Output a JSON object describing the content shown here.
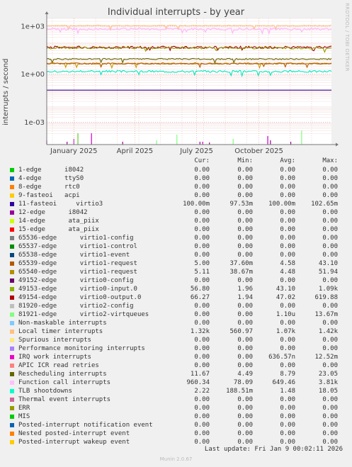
{
  "title": "Individual interrupts - by year",
  "side_credit": "RRDTOOL / TOBI OETIKER",
  "footer": {
    "last_update": "Last update: Fri Jan  9 00:02:11 2026",
    "version": "Munin 2.0.67"
  },
  "legend_header": {
    "cur": "Cur:",
    "min": "Min:",
    "avg": "Avg:",
    "max": "Max:"
  },
  "chart_data": {
    "type": "line",
    "title": "Individual interrupts - by year",
    "ylabel": "interrupts / second",
    "yscale": "log",
    "ylim": [
      4e-05,
      3000
    ],
    "yticks": [
      {
        "value": 0.001,
        "label": "1e-03"
      },
      {
        "value": 1,
        "label": "1e+00"
      },
      {
        "value": 1000,
        "label": "1e+03"
      }
    ],
    "xlim": [
      0,
      420
    ],
    "xticks": [
      {
        "label": "January 2025",
        "x": 40
      },
      {
        "label": "April 2025",
        "x": 130
      },
      {
        "label": "July 2025",
        "x": 221
      },
      {
        "label": "October 2025",
        "x": 313
      }
    ],
    "grid": true,
    "series": [
      {
        "name": "Local timer interrupts",
        "color": "#ffbf80",
        "level": 1070,
        "spread": 0.05
      },
      {
        "name": "Function call interrupts",
        "color": "#ffb3ff",
        "level": 650,
        "spread": 0.12
      },
      {
        "name": "49154-edge",
        "color": "#990000",
        "level": 47,
        "spread": 0.15
      },
      {
        "name": "49153-edge",
        "color": "#999900",
        "level": 43,
        "spread": 0.12
      },
      {
        "name": "Rescheduling interrupts",
        "color": "#666600",
        "level": 8.8,
        "spread": 0.08
      },
      {
        "name": "65540-edge",
        "color": "#cc9900",
        "level": 4.48,
        "spread": 0.08
      },
      {
        "name": "65539-edge",
        "color": "#b35900",
        "level": 4.58,
        "spread": 0.08
      },
      {
        "name": "TLB shootdowns",
        "color": "#00e6b8",
        "level": 1.48,
        "spread": 0.12
      },
      {
        "name": "11-fasteoi",
        "color": "#330099",
        "level": 0.1,
        "spread": 0.0
      }
    ],
    "spikes": [
      {
        "x": 0,
        "color": "#990099",
        "height": 0.6
      },
      {
        "x": 30,
        "color": "#990099",
        "height": 0.4
      },
      {
        "x": 40,
        "color": "#cc33cc",
        "height": 0.8
      },
      {
        "x": 46,
        "color": "#66cc33",
        "height": 1.6
      },
      {
        "x": 66,
        "color": "#cc00cc",
        "height": 1.6
      },
      {
        "x": 112,
        "color": "#990099",
        "height": 0.4
      },
      {
        "x": 162,
        "color": "#80ff80",
        "height": 0.6
      },
      {
        "x": 192,
        "color": "#80ff80",
        "height": 1.4
      },
      {
        "x": 226,
        "color": "#990099",
        "height": 0.4
      },
      {
        "x": 230,
        "color": "#cc00cc",
        "height": 0.4
      },
      {
        "x": 240,
        "color": "#990099",
        "height": 0.3
      },
      {
        "x": 275,
        "color": "#80ff80",
        "height": 0.8
      },
      {
        "x": 326,
        "color": "#cc00cc",
        "height": 1.2
      },
      {
        "x": 330,
        "color": "#990099",
        "height": 0.6
      },
      {
        "x": 360,
        "color": "#990099",
        "height": 0.4
      },
      {
        "x": 376,
        "color": "#80ff80",
        "height": 2.0
      }
    ]
  },
  "legend": [
    {
      "color": "#00cc00",
      "label": "1-edge      i8042",
      "cur": "0.00",
      "min": "0.00",
      "avg": "0.00",
      "max": "0.00"
    },
    {
      "color": "#0066b3",
      "label": "4-edge      ttyS0",
      "cur": "0.00",
      "min": "0.00",
      "avg": "0.00",
      "max": "0.00"
    },
    {
      "color": "#ff8000",
      "label": "8-edge      rtc0",
      "cur": "0.00",
      "min": "0.00",
      "avg": "0.00",
      "max": "0.00"
    },
    {
      "color": "#ffcc00",
      "label": "9-fasteoi   acpi",
      "cur": "0.00",
      "min": "0.00",
      "avg": "0.00",
      "max": "0.00"
    },
    {
      "color": "#330099",
      "label": "11-fasteoi     virtio3",
      "cur": "100.00m",
      "min": "97.53m",
      "avg": "100.00m",
      "max": "102.65m"
    },
    {
      "color": "#990099",
      "label": "12-edge      i8042",
      "cur": "0.00",
      "min": "0.00",
      "avg": "0.00",
      "max": "0.00"
    },
    {
      "color": "#ccff00",
      "label": "14-edge      ata_piix",
      "cur": "0.00",
      "min": "0.00",
      "avg": "0.00",
      "max": "0.00"
    },
    {
      "color": "#ff0000",
      "label": "15-edge      ata_piix",
      "cur": "0.00",
      "min": "0.00",
      "avg": "0.00",
      "max": "0.00"
    },
    {
      "color": "#808080",
      "label": "65536-edge      virtio1-config",
      "cur": "0.00",
      "min": "0.00",
      "avg": "0.00",
      "max": "0.00"
    },
    {
      "color": "#008f00",
      "label": "65537-edge      virtio1-control",
      "cur": "0.00",
      "min": "0.00",
      "avg": "0.00",
      "max": "0.00"
    },
    {
      "color": "#00487d",
      "label": "65538-edge      virtio1-event",
      "cur": "0.00",
      "min": "0.00",
      "avg": "0.00",
      "max": "0.00"
    },
    {
      "color": "#b35a00",
      "label": "65539-edge      virtio1-request",
      "cur": "5.00",
      "min": "37.60m",
      "avg": "4.58",
      "max": "43.10"
    },
    {
      "color": "#b38f00",
      "label": "65540-edge      virtio1-request",
      "cur": "5.11",
      "min": "38.67m",
      "avg": "4.48",
      "max": "51.94"
    },
    {
      "color": "#6b006b",
      "label": "49152-edge      virtio0-config",
      "cur": "0.00",
      "min": "0.00",
      "avg": "0.00",
      "max": "0.00"
    },
    {
      "color": "#8fb300",
      "label": "49153-edge      virtio0-input.0",
      "cur": "56.80",
      "min": "1.96",
      "avg": "43.10",
      "max": "1.09k"
    },
    {
      "color": "#b30000",
      "label": "49154-edge      virtio0-output.0",
      "cur": "66.27",
      "min": "1.94",
      "avg": "47.02",
      "max": "619.88"
    },
    {
      "color": "#bebebe",
      "label": "81920-edge      virtio2-config",
      "cur": "0.00",
      "min": "0.00",
      "avg": "0.00",
      "max": "0.00"
    },
    {
      "color": "#80ff80",
      "label": "81921-edge      virtio2-virtqueues",
      "cur": "0.00",
      "min": "0.00",
      "avg": "1.10u",
      "max": "13.67m"
    },
    {
      "color": "#80c9ff",
      "label": "Non-maskable interrupts",
      "cur": "0.00",
      "min": "0.00",
      "avg": "0.00",
      "max": "0.00"
    },
    {
      "color": "#ffc080",
      "label": "Local timer interrupts",
      "cur": "1.32k",
      "min": "560.97",
      "avg": "1.07k",
      "max": "1.42k"
    },
    {
      "color": "#ffe680",
      "label": "Spurious interrupts",
      "cur": "0.00",
      "min": "0.00",
      "avg": "0.00",
      "max": "0.00"
    },
    {
      "color": "#aa80ff",
      "label": "Performance monitoring interrupts",
      "cur": "0.00",
      "min": "0.00",
      "avg": "0.00",
      "max": "0.00"
    },
    {
      "color": "#ee00cc",
      "label": "IRQ work interrupts",
      "cur": "0.00",
      "min": "0.00",
      "avg": "636.57n",
      "max": "12.52m"
    },
    {
      "color": "#ff8080",
      "label": "APIC ICR read retries",
      "cur": "0.00",
      "min": "0.00",
      "avg": "0.00",
      "max": "0.00"
    },
    {
      "color": "#666600",
      "label": "Rescheduling interrupts",
      "cur": "11.67",
      "min": "4.49",
      "avg": "8.79",
      "max": "23.05"
    },
    {
      "color": "#ffbfff",
      "label": "Function call interrupts",
      "cur": "960.34",
      "min": "78.09",
      "avg": "649.46",
      "max": "3.81k"
    },
    {
      "color": "#00ffcc",
      "label": "TLB shootdowns",
      "cur": "2.22",
      "min": "188.51m",
      "avg": "1.48",
      "max": "18.05"
    },
    {
      "color": "#cc6699",
      "label": "Thermal event interrupts",
      "cur": "0.00",
      "min": "0.00",
      "avg": "0.00",
      "max": "0.00"
    },
    {
      "color": "#999900",
      "label": "ERR",
      "cur": "0.00",
      "min": "0.00",
      "avg": "0.00",
      "max": "0.00"
    },
    {
      "color": "#00cc00",
      "label": "MIS",
      "cur": "0.00",
      "min": "0.00",
      "avg": "0.00",
      "max": "0.00"
    },
    {
      "color": "#0066b3",
      "label": "Posted-interrupt notification event",
      "cur": "0.00",
      "min": "0.00",
      "avg": "0.00",
      "max": "0.00"
    },
    {
      "color": "#ff8000",
      "label": "Nested posted-interrupt event",
      "cur": "0.00",
      "min": "0.00",
      "avg": "0.00",
      "max": "0.00"
    },
    {
      "color": "#ffcc00",
      "label": "Posted-interrupt wakeup event",
      "cur": "0.00",
      "min": "0.00",
      "avg": "0.00",
      "max": "0.00"
    }
  ]
}
